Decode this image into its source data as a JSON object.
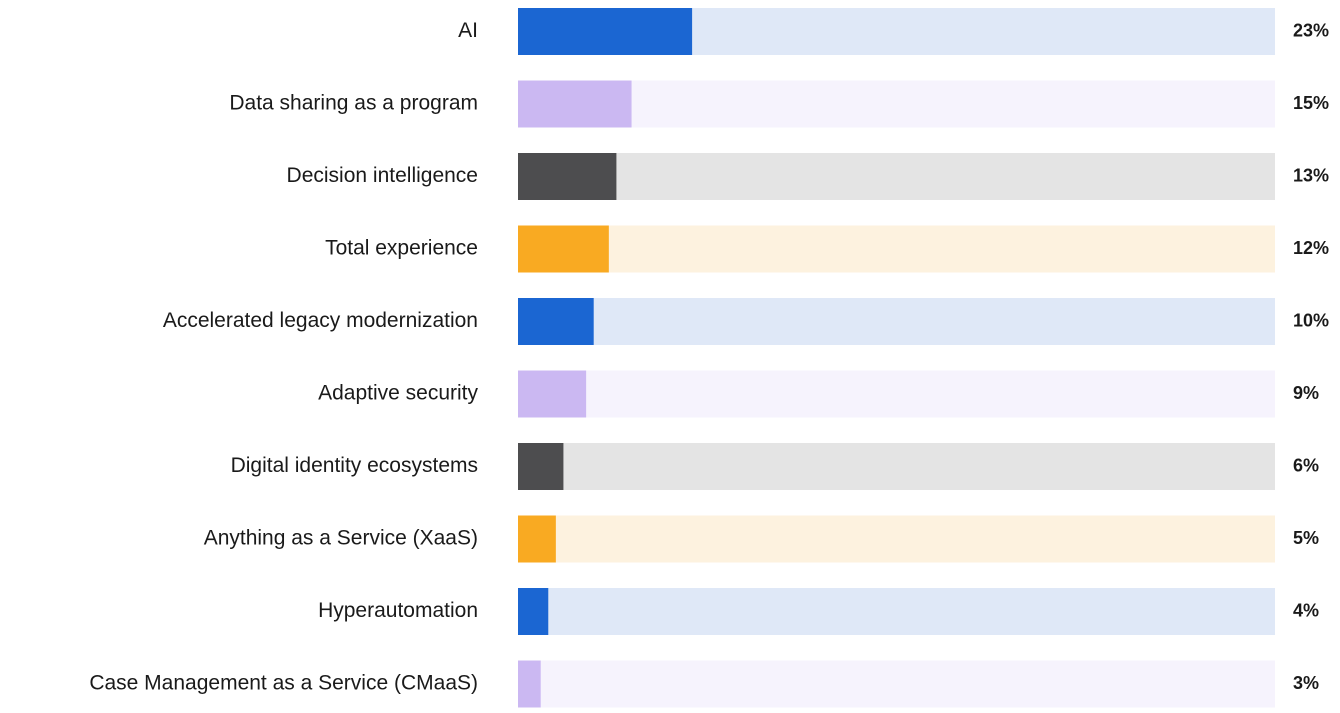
{
  "chart_data": {
    "type": "bar",
    "orientation": "horizontal",
    "categories": [
      "AI",
      "Data sharing as a program",
      "Decision intelligence",
      "Total experience",
      "Accelerated legacy modernization",
      "Adaptive security",
      "Digital identity ecosystems",
      "Anything as a Service (XaaS)",
      "Hyperautomation",
      "Case Management as a Service (CMaaS)"
    ],
    "values": [
      23,
      15,
      13,
      12,
      10,
      9,
      6,
      5,
      4,
      3
    ],
    "value_labels": [
      "23%",
      "15%",
      "13%",
      "12%",
      "10%",
      "9%",
      "6%",
      "5%",
      "4%",
      "3%"
    ],
    "colors": [
      "#1b66d2",
      "#cbb8f2",
      "#4d4d4f",
      "#f9aa22"
    ],
    "track_colors": [
      "#dfe8f7",
      "#f6f3fd",
      "#e4e4e4",
      "#fdf2df"
    ],
    "xlim": [
      0,
      100
    ]
  }
}
